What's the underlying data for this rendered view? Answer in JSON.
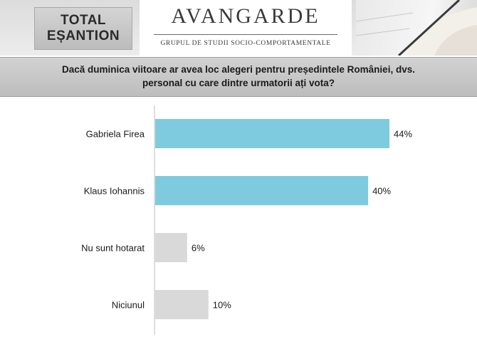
{
  "header": {
    "total_line1": "TOTAL",
    "total_line2": "EȘANTION",
    "logo_name": "AVANGARDE",
    "logo_subtitle": "GRUPUL DE STUDII SOCIO-COMPORTAMENTALE"
  },
  "question": {
    "line1": "Dacă duminica viitoare ar avea loc alegeri pentru președintele României, dvs.",
    "line2": "personal cu care dintre urmatorii ați vota?"
  },
  "chart_data": {
    "type": "bar",
    "orientation": "horizontal",
    "categories": [
      "Gabriela Firea",
      "Klaus Iohannis",
      "Nu sunt hotarat",
      "Niciunul"
    ],
    "values": [
      44,
      40,
      6,
      10
    ],
    "value_labels": [
      "44%",
      "40%",
      "6%",
      "10%"
    ],
    "colors": [
      "#7ecbdf",
      "#7ecbdf",
      "#d9d9d9",
      "#d9d9d9"
    ],
    "xlim": [
      0,
      44
    ],
    "grid": false,
    "legend": "none"
  }
}
